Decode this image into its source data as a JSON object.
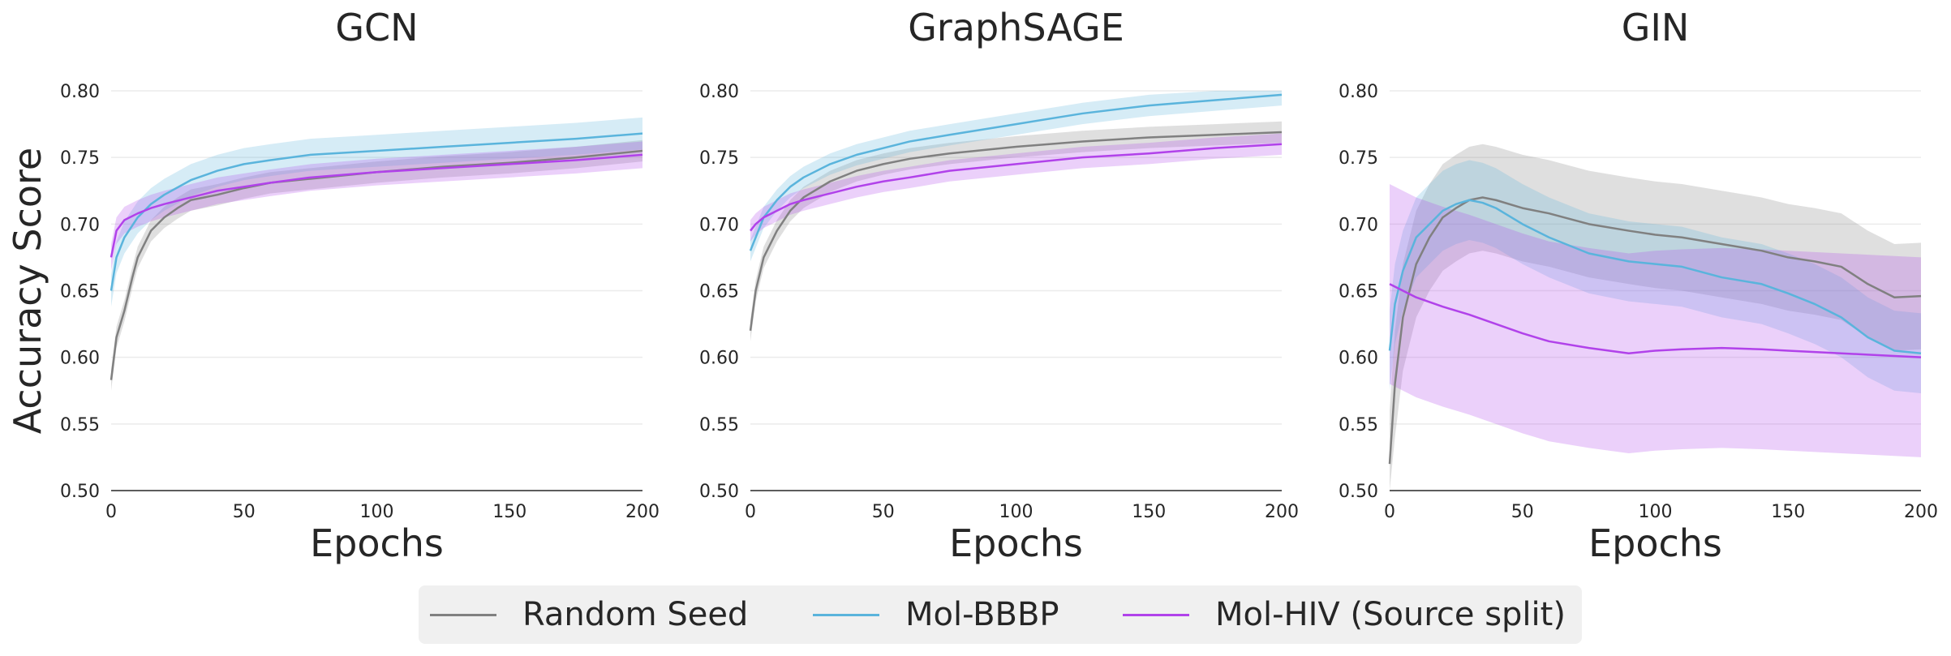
{
  "chart_data": [
    {
      "type": "line",
      "title": "GCN",
      "xlabel": "Epochs",
      "ylabel": "Accuracy Score",
      "xlim": [
        0,
        200
      ],
      "ylim": [
        0.5,
        0.8
      ],
      "xticks": [
        0,
        50,
        100,
        150,
        200
      ],
      "yticks": [
        0.5,
        0.55,
        0.6,
        0.65,
        0.7,
        0.75,
        0.8
      ],
      "grid": "horizontal",
      "series": [
        {
          "name": "Random Seed",
          "color": "#808080",
          "x": [
            0,
            2,
            5,
            8,
            10,
            15,
            20,
            25,
            30,
            40,
            50,
            60,
            75,
            100,
            125,
            150,
            175,
            200
          ],
          "values": [
            0.583,
            0.615,
            0.635,
            0.66,
            0.675,
            0.695,
            0.705,
            0.712,
            0.718,
            0.722,
            0.727,
            0.731,
            0.734,
            0.739,
            0.743,
            0.746,
            0.75,
            0.755
          ],
          "band": 0.008
        },
        {
          "name": "Mol-BBBP",
          "color": "#5ab4dc",
          "x": [
            0,
            2,
            5,
            10,
            15,
            20,
            30,
            40,
            50,
            60,
            75,
            100,
            125,
            150,
            175,
            200
          ],
          "values": [
            0.65,
            0.675,
            0.69,
            0.705,
            0.715,
            0.722,
            0.733,
            0.74,
            0.745,
            0.748,
            0.752,
            0.755,
            0.758,
            0.761,
            0.764,
            0.768
          ],
          "band": 0.012
        },
        {
          "name": "Mol-HIV (Source split)",
          "color": "#b142ea",
          "x": [
            0,
            2,
            5,
            10,
            15,
            20,
            30,
            40,
            50,
            60,
            75,
            100,
            125,
            150,
            175,
            200
          ],
          "values": [
            0.675,
            0.695,
            0.703,
            0.708,
            0.712,
            0.715,
            0.72,
            0.725,
            0.728,
            0.731,
            0.735,
            0.739,
            0.742,
            0.745,
            0.748,
            0.752
          ],
          "band": 0.01
        }
      ]
    },
    {
      "type": "line",
      "title": "GraphSAGE",
      "xlabel": "Epochs",
      "ylabel": "",
      "xlim": [
        0,
        200
      ],
      "ylim": [
        0.5,
        0.8
      ],
      "xticks": [
        0,
        50,
        100,
        150,
        200
      ],
      "yticks": [
        0.5,
        0.55,
        0.6,
        0.65,
        0.7,
        0.75,
        0.8
      ],
      "grid": "horizontal",
      "series": [
        {
          "name": "Random Seed",
          "color": "#808080",
          "x": [
            0,
            2,
            5,
            10,
            15,
            20,
            30,
            40,
            50,
            60,
            75,
            100,
            125,
            150,
            175,
            200
          ],
          "values": [
            0.62,
            0.65,
            0.675,
            0.695,
            0.71,
            0.72,
            0.732,
            0.74,
            0.745,
            0.749,
            0.753,
            0.758,
            0.762,
            0.765,
            0.767,
            0.769
          ],
          "band": 0.008
        },
        {
          "name": "Mol-BBBP",
          "color": "#5ab4dc",
          "x": [
            0,
            2,
            5,
            10,
            15,
            20,
            30,
            40,
            50,
            60,
            75,
            100,
            125,
            150,
            175,
            200
          ],
          "values": [
            0.68,
            0.69,
            0.705,
            0.718,
            0.728,
            0.735,
            0.745,
            0.752,
            0.757,
            0.762,
            0.767,
            0.775,
            0.783,
            0.789,
            0.793,
            0.797
          ],
          "band": 0.008
        },
        {
          "name": "Mol-HIV (Source split)",
          "color": "#b142ea",
          "x": [
            0,
            2,
            5,
            10,
            15,
            20,
            30,
            40,
            50,
            60,
            75,
            100,
            125,
            150,
            175,
            200
          ],
          "values": [
            0.695,
            0.7,
            0.705,
            0.71,
            0.715,
            0.718,
            0.723,
            0.728,
            0.732,
            0.735,
            0.74,
            0.745,
            0.75,
            0.753,
            0.757,
            0.76
          ],
          "band": 0.008
        }
      ]
    },
    {
      "type": "line",
      "title": "GIN",
      "xlabel": "Epochs",
      "ylabel": "",
      "xlim": [
        0,
        200
      ],
      "ylim": [
        0.5,
        0.8
      ],
      "xticks": [
        0,
        50,
        100,
        150,
        200
      ],
      "yticks": [
        0.5,
        0.55,
        0.6,
        0.65,
        0.7,
        0.75,
        0.8
      ],
      "grid": "horizontal",
      "series": [
        {
          "name": "Random Seed",
          "color": "#808080",
          "x": [
            0,
            2,
            5,
            10,
            15,
            20,
            25,
            30,
            35,
            40,
            50,
            60,
            75,
            90,
            100,
            110,
            125,
            140,
            150,
            160,
            170,
            180,
            190,
            200
          ],
          "values": [
            0.52,
            0.58,
            0.63,
            0.67,
            0.69,
            0.705,
            0.712,
            0.718,
            0.72,
            0.718,
            0.712,
            0.708,
            0.7,
            0.695,
            0.692,
            0.69,
            0.685,
            0.68,
            0.675,
            0.672,
            0.668,
            0.655,
            0.645,
            0.646
          ],
          "band": 0.04
        },
        {
          "name": "Mol-BBBP",
          "color": "#5ab4dc",
          "x": [
            0,
            2,
            5,
            10,
            15,
            20,
            25,
            30,
            35,
            40,
            50,
            60,
            75,
            90,
            100,
            110,
            125,
            140,
            150,
            160,
            170,
            180,
            190,
            200
          ],
          "values": [
            0.605,
            0.64,
            0.665,
            0.69,
            0.7,
            0.71,
            0.715,
            0.718,
            0.716,
            0.712,
            0.7,
            0.69,
            0.678,
            0.672,
            0.67,
            0.668,
            0.66,
            0.655,
            0.648,
            0.64,
            0.63,
            0.615,
            0.605,
            0.603
          ],
          "band": 0.03
        },
        {
          "name": "Mol-HIV (Source split)",
          "color": "#b142ea",
          "x": [
            0,
            5,
            10,
            20,
            30,
            40,
            50,
            60,
            75,
            90,
            100,
            110,
            125,
            140,
            150,
            160,
            170,
            180,
            190,
            200
          ],
          "values": [
            0.655,
            0.65,
            0.645,
            0.638,
            0.632,
            0.625,
            0.618,
            0.612,
            0.607,
            0.603,
            0.605,
            0.606,
            0.607,
            0.606,
            0.605,
            0.604,
            0.603,
            0.602,
            0.601,
            0.6
          ],
          "band": 0.075
        }
      ]
    }
  ],
  "legend": {
    "placement": "bottom-center",
    "items": [
      {
        "label": "Random Seed",
        "color": "#808080"
      },
      {
        "label": "Mol-BBBP",
        "color": "#5ab4dc"
      },
      {
        "label": "Mol-HIV (Source split)",
        "color": "#b142ea"
      }
    ]
  }
}
